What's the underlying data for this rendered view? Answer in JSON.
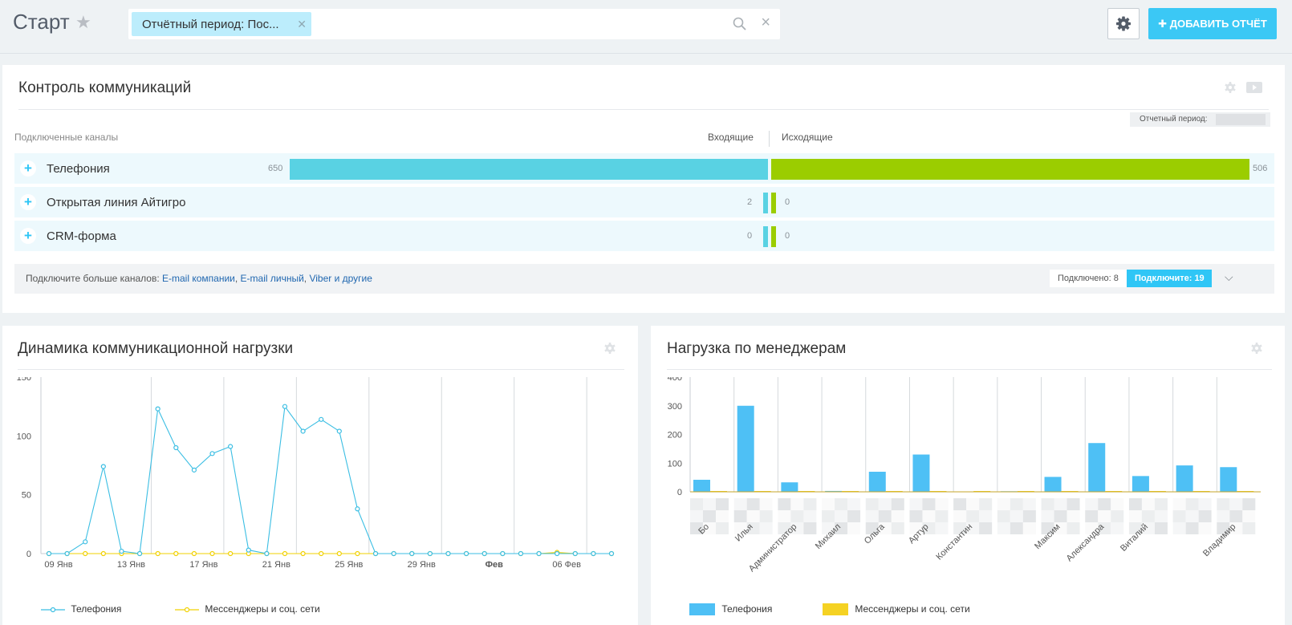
{
  "header": {
    "title": "Старт",
    "filter_chip": "Отчётный период: Пос...",
    "add_button": "✚ ДОБАВИТЬ ОТЧЁТ"
  },
  "communications": {
    "title": "Контроль коммуникаций",
    "period_label": "Отчетный период: ",
    "col_channels": "Подключенные каналы",
    "col_incoming": "Входящие",
    "col_outgoing": "Исходящие",
    "channels": [
      {
        "name": "Телефония",
        "incoming": 650,
        "outgoing": 506
      },
      {
        "name": "Открытая линия Айтигро",
        "incoming": 2,
        "outgoing": 0
      },
      {
        "name": "CRM-форма",
        "incoming": 0,
        "outgoing": 0
      }
    ],
    "more_prefix": "Подключите больше каналов: ",
    "more_link1": "E-mail компании",
    "more_link2": "E-mail личный",
    "more_link3": "Viber и другие",
    "connected": "Подключено: 8",
    "connect_button": "Подключите: 19",
    "colors": {
      "incoming": "#59d2e3",
      "outgoing": "#9bcd00"
    }
  },
  "dynamics": {
    "title": "Динамика коммуникационной нагрузки",
    "legend": [
      "Телефония",
      "Мессенджеры и соц. сети"
    ],
    "chart_data": {
      "type": "line",
      "ylim": [
        0,
        150
      ],
      "yticks": [
        0,
        50,
        100,
        150
      ],
      "x_tick_labels": [
        "09 Янв",
        "13 Янв",
        "17 Янв",
        "21 Янв",
        "25 Янв",
        "29 Янв",
        "Фев",
        "06 Фев"
      ],
      "x_tick_positions": [
        0,
        4,
        8,
        12,
        16,
        20,
        24,
        28
      ],
      "series": [
        {
          "name": "Телефония",
          "color": "#3bbee3",
          "values": [
            0,
            0,
            10,
            74,
            2,
            0,
            123,
            90,
            71,
            85,
            91,
            3,
            0,
            125,
            104,
            114,
            104,
            38,
            0,
            0,
            0,
            0,
            0,
            0,
            0,
            0,
            0,
            0,
            0,
            0,
            0,
            0
          ]
        },
        {
          "name": "Мессенджеры и соц. сети",
          "color": "#f1d100",
          "values": [
            0,
            0,
            0,
            0,
            0,
            0,
            0,
            0,
            0,
            0,
            0,
            0,
            0,
            0,
            0,
            0,
            0,
            0,
            0,
            0,
            0,
            0,
            0,
            0,
            0,
            0,
            0,
            0,
            1,
            0,
            0,
            0
          ]
        }
      ]
    }
  },
  "managers": {
    "title": "Нагрузка по менеджерам",
    "legend": [
      "Телефония",
      "Мессенджеры и соц. сети"
    ],
    "chart_data": {
      "type": "bar",
      "ylim": [
        0,
        400
      ],
      "yticks": [
        0,
        100,
        200,
        300,
        400
      ],
      "categories": [
        "Бо",
        "Илья",
        "Администратор",
        "Михаил",
        "Ольга",
        "Артур",
        "Константин",
        "",
        "Максим",
        "Александра",
        "Виталий",
        "",
        "Владимир"
      ],
      "series": [
        {
          "name": "Телефония",
          "color": "#4ec0f5",
          "values": [
            42,
            300,
            33,
            3,
            70,
            130,
            0,
            2,
            52,
            170,
            55,
            92,
            86
          ]
        },
        {
          "name": "Мессенджеры и соц. сети",
          "color": "#f5d223",
          "values": [
            0,
            0,
            0,
            0,
            0,
            0,
            0,
            0,
            0,
            0,
            0,
            0,
            0
          ]
        }
      ]
    }
  }
}
